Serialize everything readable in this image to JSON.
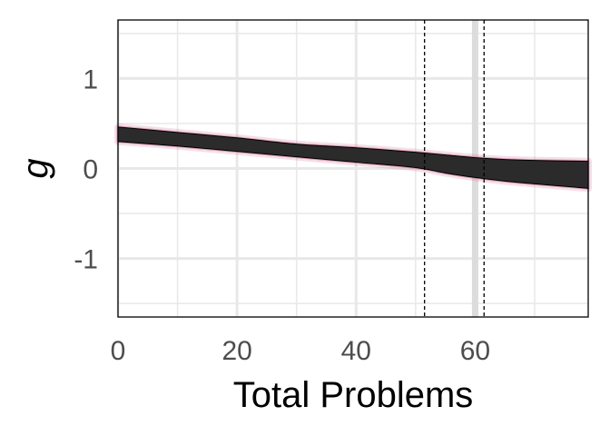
{
  "chart_data": {
    "type": "area",
    "xlabel": "Total Problems",
    "ylabel": "g",
    "xlim": [
      0,
      79
    ],
    "ylim": [
      -1.65,
      1.65
    ],
    "x_ticks": [
      0,
      20,
      40,
      60
    ],
    "x_tick_labels": [
      "0",
      "20",
      "40",
      "60"
    ],
    "y_ticks": [
      1,
      0,
      -1
    ],
    "y_tick_labels": [
      "1",
      "0",
      "-1"
    ],
    "grid": true,
    "x_grid_major": [
      0,
      20,
      40,
      60
    ],
    "x_grid_minor": [
      10,
      30,
      50,
      70
    ],
    "y_grid_major": [
      -1,
      0,
      1
    ],
    "y_grid_minor": [
      -1.5,
      -0.5,
      0.5,
      1.5
    ],
    "highlight_gridline_x": 60,
    "vlines": [
      51.5,
      61.5
    ],
    "ribbon": {
      "x": [
        0,
        10,
        20,
        30,
        40,
        50,
        55,
        60,
        65,
        70,
        79
      ],
      "upper": [
        0.46,
        0.4,
        0.34,
        0.27,
        0.23,
        0.18,
        0.15,
        0.12,
        0.1,
        0.09,
        0.08
      ],
      "lower": [
        0.3,
        0.25,
        0.19,
        0.13,
        0.07,
        0.01,
        -0.05,
        -0.1,
        -0.14,
        -0.17,
        -0.22
      ]
    },
    "colors": {
      "ribbon": "#2b2b2b",
      "ribbon_halo": "#c05080",
      "grid": "#e8e8e8",
      "highlight_grid": "#dcdcdc",
      "vline": "#000000"
    }
  }
}
